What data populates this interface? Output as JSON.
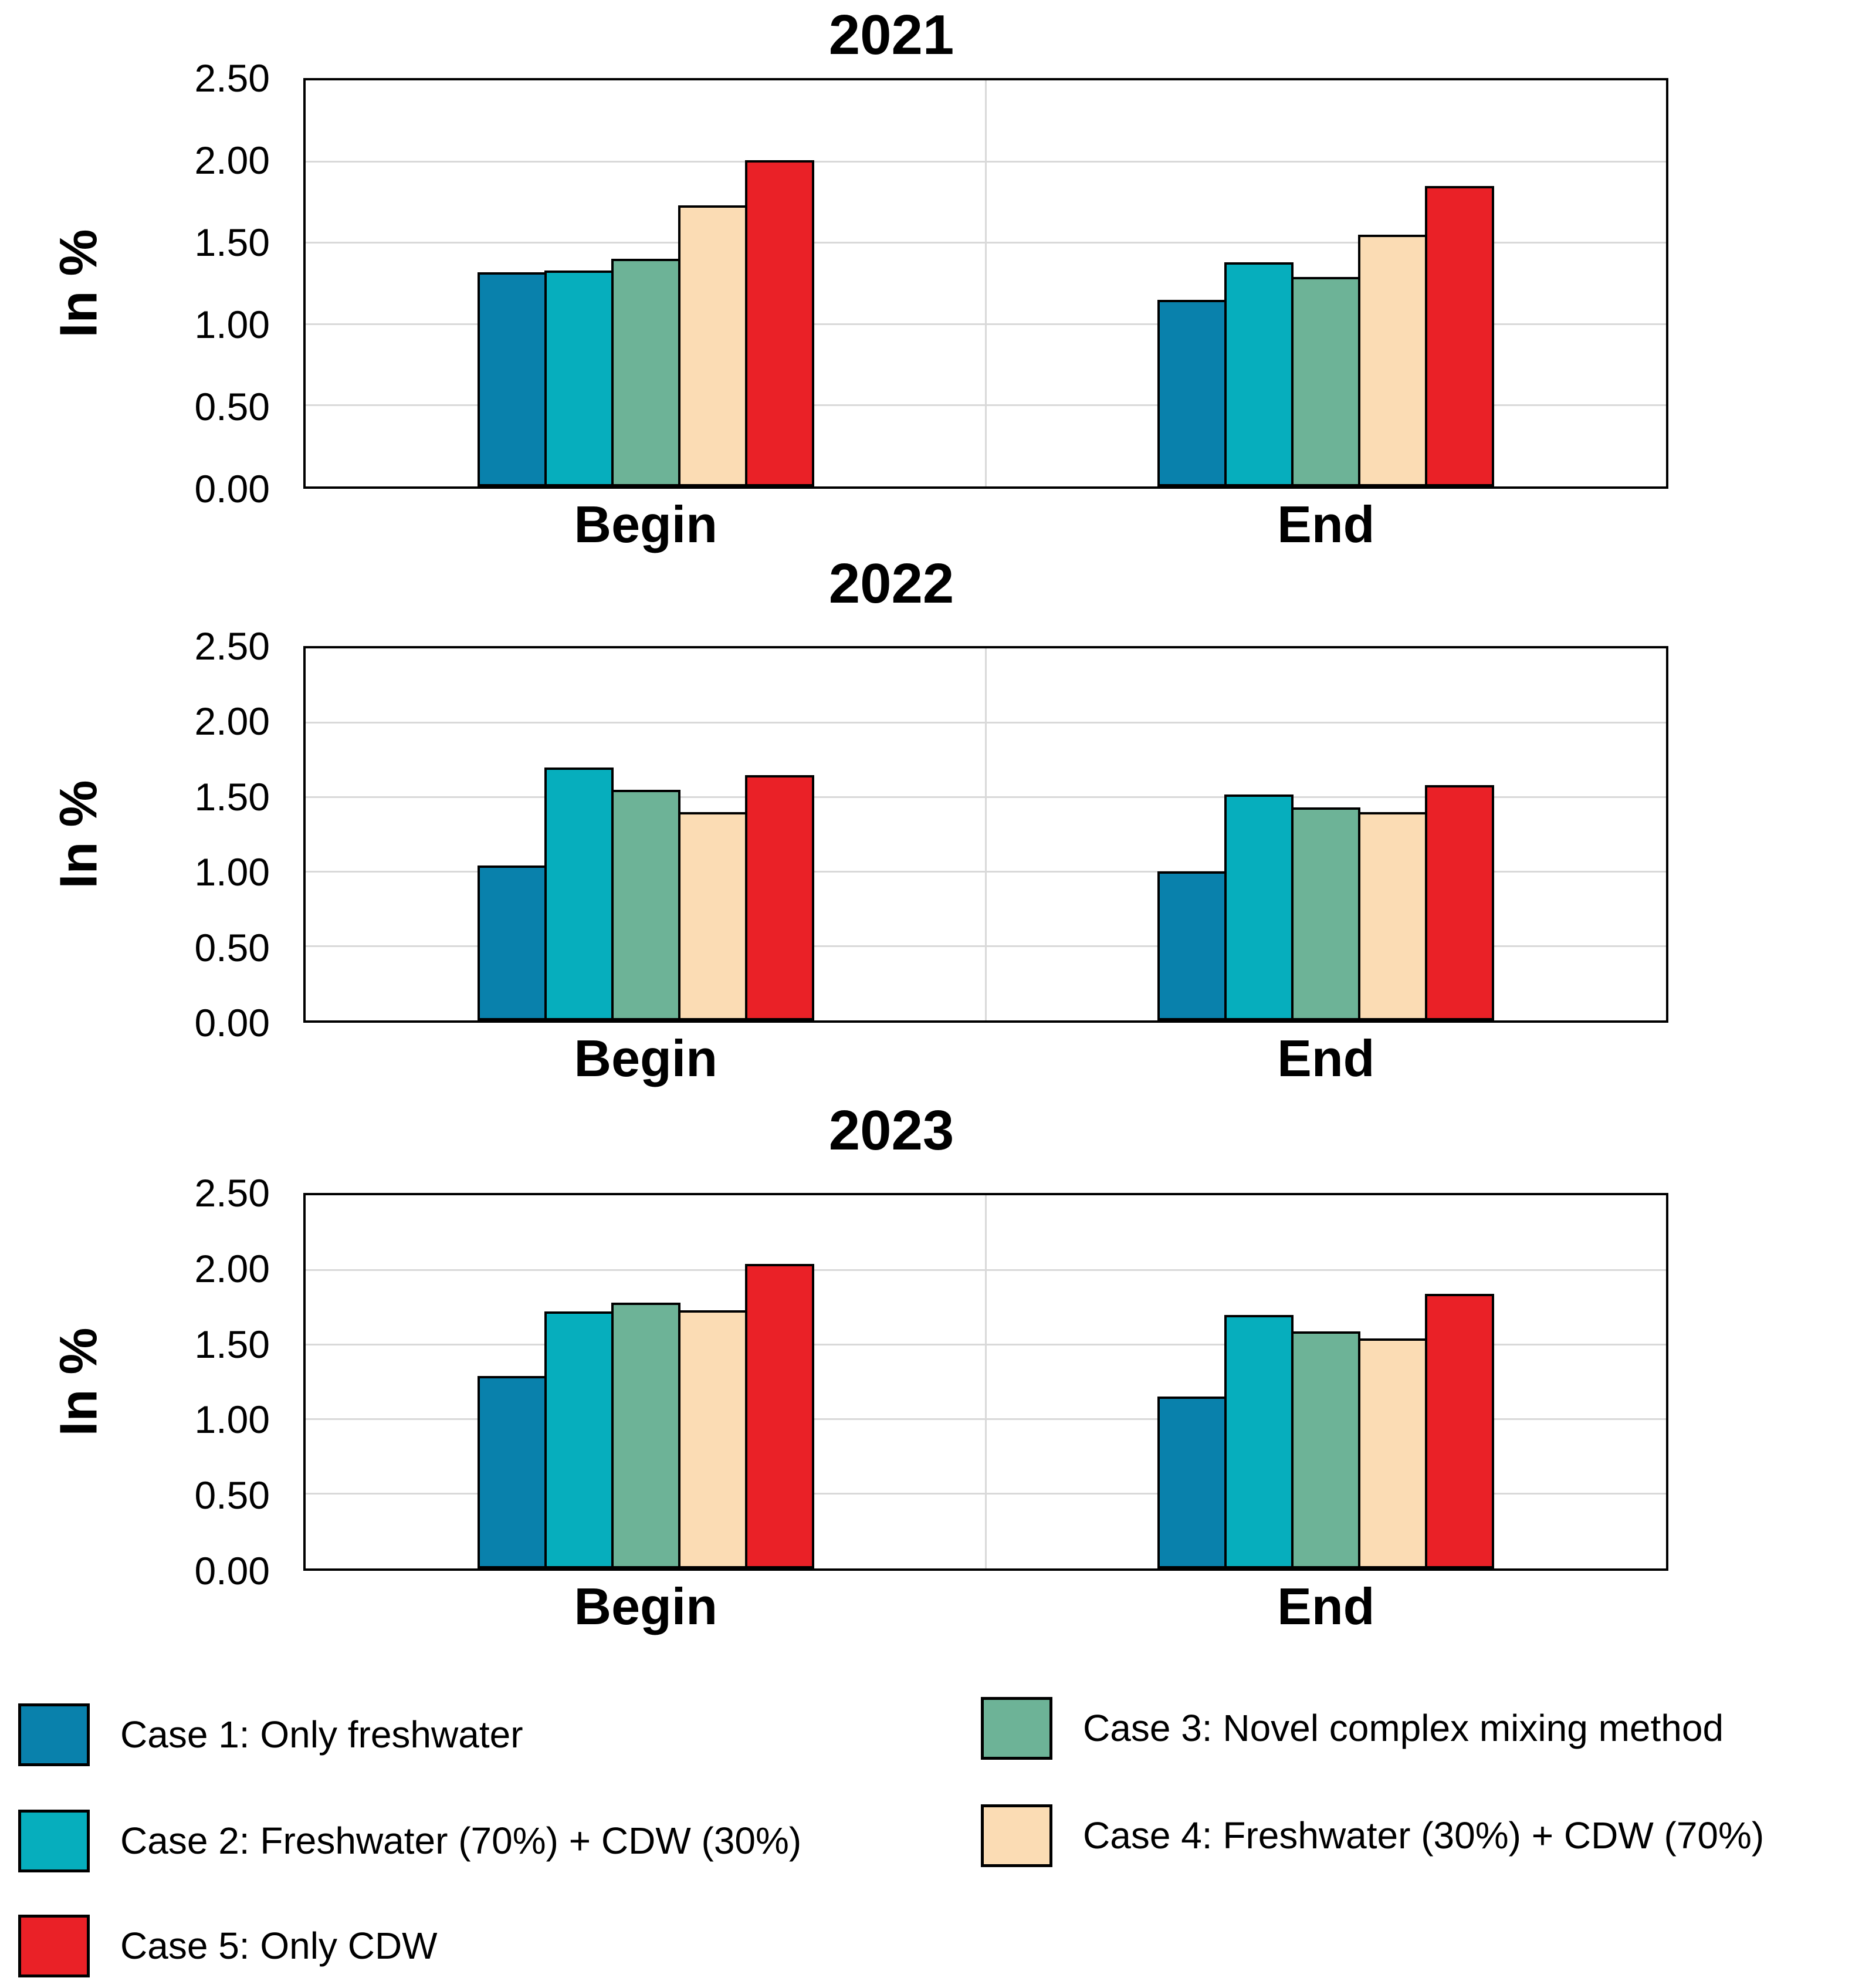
{
  "figure": {
    "background": "#ffffff",
    "grid_color": "#d9d9d9",
    "axis_border_color": "#000000"
  },
  "axis": {
    "y_title": "In %",
    "ytick_labels": [
      "0.00",
      "0.50",
      "1.00",
      "1.50",
      "2.00",
      "2.50"
    ],
    "categories": [
      "Begin",
      "End"
    ]
  },
  "legend": {
    "items": [
      {
        "label": "Case 1: Only freshwater",
        "color": "#0981ac"
      },
      {
        "label": "Case 2: Freshwater (70%) + CDW (30%)",
        "color": "#06aebd"
      },
      {
        "label": "Case 3: Novel complex mixing method",
        "color": "#6db397"
      },
      {
        "label": "Case 4: Freshwater (30%) + CDW (70%)",
        "color": "#fbdcb4"
      },
      {
        "label": "Case 5: Only CDW",
        "color": "#ea2127"
      }
    ]
  },
  "chart_data": [
    {
      "type": "bar",
      "title": "2021",
      "ylabel": "In %",
      "xlabel": "",
      "ylim": [
        0,
        2.5
      ],
      "ytick_step": 0.5,
      "grid": true,
      "legend_position": "bottom",
      "categories": [
        "Begin",
        "End"
      ],
      "series": [
        {
          "name": "Case 1: Only freshwater",
          "color": "#0981ac",
          "values": [
            1.32,
            1.15
          ]
        },
        {
          "name": "Case 2: Freshwater (70%) + CDW (30%)",
          "color": "#06aebd",
          "values": [
            1.33,
            1.38
          ]
        },
        {
          "name": "Case 3: Novel complex mixing method",
          "color": "#6db397",
          "values": [
            1.4,
            1.29
          ]
        },
        {
          "name": "Case 4: Freshwater (30%) + CDW (70%)",
          "color": "#fbdcb4",
          "values": [
            1.73,
            1.55
          ]
        },
        {
          "name": "Case 5: Only CDW",
          "color": "#ea2127",
          "values": [
            2.01,
            1.85
          ]
        }
      ]
    },
    {
      "type": "bar",
      "title": "2022",
      "ylabel": "In %",
      "xlabel": "",
      "ylim": [
        0,
        2.5
      ],
      "ytick_step": 0.5,
      "grid": true,
      "legend_position": "bottom",
      "categories": [
        "Begin",
        "End"
      ],
      "series": [
        {
          "name": "Case 1: Only freshwater",
          "color": "#0981ac",
          "values": [
            1.04,
            1.0
          ]
        },
        {
          "name": "Case 2: Freshwater (70%) + CDW (30%)",
          "color": "#06aebd",
          "values": [
            1.7,
            1.52
          ]
        },
        {
          "name": "Case 3: Novel complex mixing method",
          "color": "#6db397",
          "values": [
            1.55,
            1.43
          ]
        },
        {
          "name": "Case 4: Freshwater (30%) + CDW (70%)",
          "color": "#fbdcb4",
          "values": [
            1.4,
            1.4
          ]
        },
        {
          "name": "Case 5: Only CDW",
          "color": "#ea2127",
          "values": [
            1.65,
            1.58
          ]
        }
      ]
    },
    {
      "type": "bar",
      "title": "2023",
      "ylabel": "In %",
      "xlabel": "",
      "ylim": [
        0,
        2.5
      ],
      "ytick_step": 0.5,
      "grid": true,
      "legend_position": "bottom",
      "categories": [
        "Begin",
        "End"
      ],
      "series": [
        {
          "name": "Case 1: Only freshwater",
          "color": "#0981ac",
          "values": [
            1.29,
            1.15
          ]
        },
        {
          "name": "Case 2: Freshwater (70%) + CDW (30%)",
          "color": "#06aebd",
          "values": [
            1.72,
            1.7
          ]
        },
        {
          "name": "Case 3: Novel complex mixing method",
          "color": "#6db397",
          "values": [
            1.78,
            1.59
          ]
        },
        {
          "name": "Case 4: Freshwater (30%) + CDW (70%)",
          "color": "#fbdcb4",
          "values": [
            1.73,
            1.54
          ]
        },
        {
          "name": "Case 5: Only CDW",
          "color": "#ea2127",
          "values": [
            2.04,
            1.84
          ]
        }
      ]
    }
  ]
}
